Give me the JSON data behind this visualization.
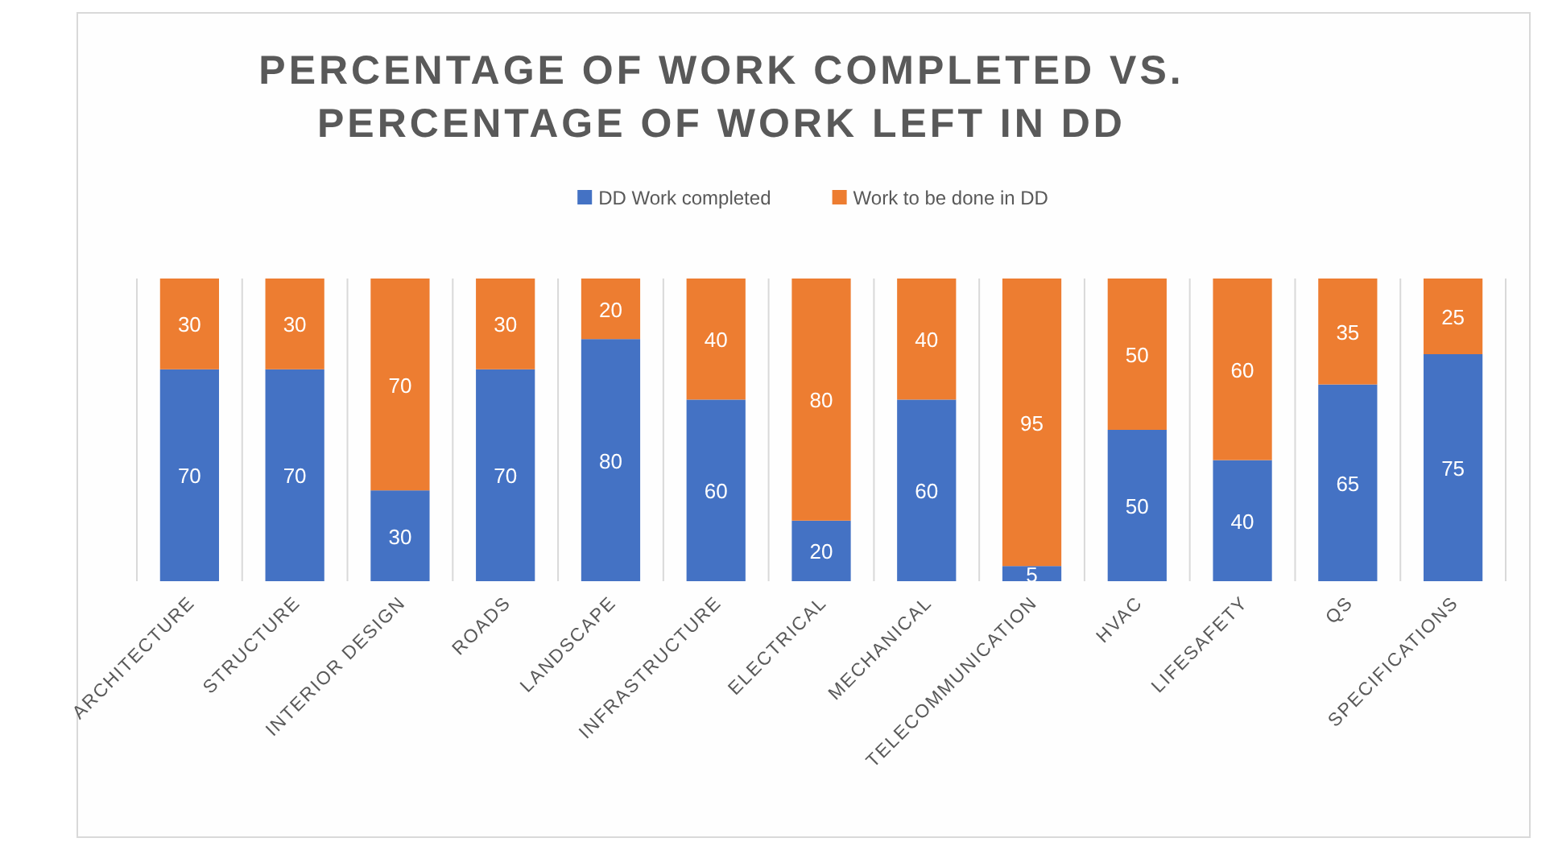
{
  "chart_data": {
    "type": "bar",
    "title": "PERCENTAGE OF WORK COMPLETED VS. PERCENTAGE OF WORK LEFT IN DD",
    "categories": [
      "ARCHITECTURE",
      "STRUCTURE",
      "INTERIOR DESIGN",
      "ROADS",
      "LANDSCAPE",
      "INFRASTRUCTURE",
      "ELECTRICAL",
      "MECHANICAL",
      "TELECOMMUNICATION",
      "HVAC",
      "LIFESAFETY",
      "QS",
      "SPECIFICATIONS"
    ],
    "series": [
      {
        "name": "DD Work completed",
        "color": "#4472c4",
        "values": [
          70,
          70,
          30,
          70,
          80,
          60,
          20,
          60,
          5,
          50,
          40,
          65,
          75
        ]
      },
      {
        "name": "Work to be done in DD",
        "color": "#ed7d31",
        "values": [
          30,
          30,
          70,
          30,
          20,
          40,
          80,
          40,
          95,
          50,
          60,
          35,
          25
        ]
      }
    ],
    "stacked": true,
    "ylim": [
      0,
      100
    ],
    "tick_labels": "x",
    "grid": "x",
    "legend": "top",
    "data_labels": true
  }
}
